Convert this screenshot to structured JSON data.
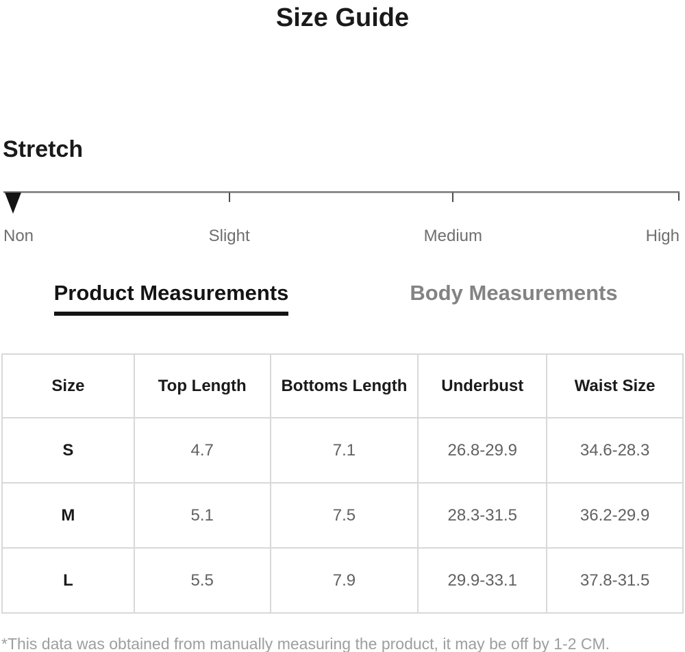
{
  "page": {
    "title": "Size Guide"
  },
  "stretch": {
    "heading": "Stretch",
    "marker_level": "Non",
    "levels": [
      {
        "label": "Non"
      },
      {
        "label": "Slight"
      },
      {
        "label": "Medium"
      },
      {
        "label": "High"
      }
    ]
  },
  "tabs": [
    {
      "label": "Product Measurements",
      "active": true
    },
    {
      "label": "Body Measurements",
      "active": false
    }
  ],
  "table": {
    "headers": [
      "Size",
      "Top Length",
      "Bottoms Length",
      "Underbust",
      "Waist Size"
    ],
    "rows": [
      {
        "size": "S",
        "values": [
          "4.7",
          "7.1",
          "26.8-29.9",
          "34.6-28.3"
        ]
      },
      {
        "size": "M",
        "values": [
          "5.1",
          "7.5",
          "28.3-31.5",
          "36.2-29.9"
        ]
      },
      {
        "size": "L",
        "values": [
          "5.5",
          "7.9",
          "29.9-33.1",
          "37.8-31.5"
        ]
      }
    ]
  },
  "footnote": "*This data was obtained from manually measuring the product, it may be off by 1-2 CM.",
  "colors": {
    "text_primary": "#1a1a1a",
    "text_secondary": "#6e6e6e",
    "inactive_tab": "#838383",
    "cell_value": "#616161",
    "table_border": "#d8d8d8",
    "scale_line": "#8c8c8c",
    "marker": "#141414",
    "footnote": "#9e9e9e"
  }
}
